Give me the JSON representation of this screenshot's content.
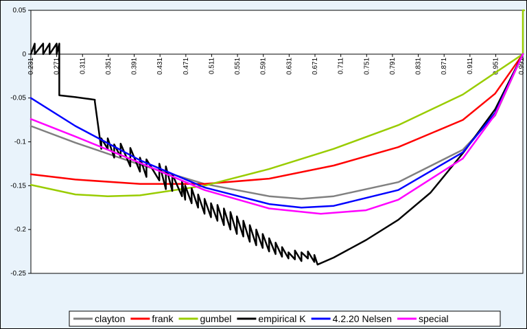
{
  "chart_data": {
    "type": "line",
    "title": "",
    "xlabel": "",
    "ylabel": "",
    "xlim": [
      0.231,
      0.993
    ],
    "ylim": [
      -0.25,
      0.05
    ],
    "y_ticks": [
      0.05,
      0,
      -0.05,
      -0.1,
      -0.15,
      -0.2,
      -0.25
    ],
    "y_tick_labels": [
      "0.05",
      "0",
      "-0.05",
      "-0.1",
      "-0.15",
      "-0.2",
      "-0.25"
    ],
    "x_tick_labels": [
      "0.231",
      "0.271",
      "0.311",
      "0.351",
      "0.391",
      "0.431",
      "0.471",
      "0.511",
      "0.551",
      "0.591",
      "0.631",
      "0.671",
      "0.711",
      "0.751",
      "0.791",
      "0.831",
      "0.871",
      "0.911",
      "0.951",
      "0.991"
    ],
    "grid": false,
    "legend_position": "bottom",
    "series": [
      {
        "name": "clayton",
        "color": "#808080",
        "x": [
          0.231,
          0.3,
          0.4,
          0.5,
          0.6,
          0.65,
          0.7,
          0.8,
          0.9,
          0.95,
          0.993
        ],
        "y": [
          -0.082,
          -0.101,
          -0.126,
          -0.148,
          -0.162,
          -0.165,
          -0.162,
          -0.146,
          -0.109,
          -0.07,
          0.0
        ]
      },
      {
        "name": "frank",
        "color": "#ff0000",
        "x": [
          0.231,
          0.3,
          0.4,
          0.5,
          0.6,
          0.7,
          0.8,
          0.9,
          0.95,
          0.993
        ],
        "y": [
          -0.137,
          -0.143,
          -0.148,
          -0.148,
          -0.142,
          -0.127,
          -0.106,
          -0.075,
          -0.045,
          0.0
        ]
      },
      {
        "name": "gumbel",
        "color": "#99cc00",
        "x": [
          0.231,
          0.3,
          0.35,
          0.4,
          0.5,
          0.6,
          0.7,
          0.8,
          0.9,
          0.993,
          0.993,
          0.995
        ],
        "y": [
          -0.149,
          -0.16,
          -0.162,
          -0.161,
          -0.15,
          -0.131,
          -0.108,
          -0.081,
          -0.046,
          0.0,
          0.05,
          0.05
        ]
      },
      {
        "name": "empirical K",
        "color": "#000000",
        "x": [
          0.231,
          0.237,
          0.237,
          0.25,
          0.25,
          0.26,
          0.26,
          0.271,
          0.271,
          0.275,
          0.275,
          0.3,
          0.33,
          0.33,
          0.34,
          0.34,
          0.35,
          0.35,
          0.36,
          0.36,
          0.37,
          0.37,
          0.385,
          0.385,
          0.4,
          0.4,
          0.41,
          0.41,
          0.43,
          0.43,
          0.44,
          0.44,
          0.45,
          0.45,
          0.465,
          0.465,
          0.47,
          0.47,
          0.48,
          0.48,
          0.49,
          0.49,
          0.5,
          0.5,
          0.51,
          0.51,
          0.52,
          0.52,
          0.53,
          0.53,
          0.54,
          0.54,
          0.55,
          0.55,
          0.56,
          0.56,
          0.57,
          0.57,
          0.58,
          0.58,
          0.59,
          0.59,
          0.6,
          0.6,
          0.61,
          0.61,
          0.62,
          0.62,
          0.63,
          0.63,
          0.64,
          0.64,
          0.65,
          0.65,
          0.66,
          0.66,
          0.67,
          0.67,
          0.675,
          0.7,
          0.75,
          0.8,
          0.85,
          0.9,
          0.95,
          0.993
        ],
        "y": [
          0.0,
          0.012,
          0.0,
          0.012,
          0.0,
          0.012,
          0.0,
          0.012,
          0.0,
          0.012,
          -0.047,
          -0.049,
          -0.052,
          -0.054,
          -0.108,
          -0.096,
          -0.108,
          -0.096,
          -0.118,
          -0.103,
          -0.117,
          -0.102,
          -0.128,
          -0.107,
          -0.134,
          -0.118,
          -0.14,
          -0.12,
          -0.144,
          -0.125,
          -0.154,
          -0.128,
          -0.156,
          -0.137,
          -0.162,
          -0.145,
          -0.166,
          -0.15,
          -0.17,
          -0.153,
          -0.175,
          -0.16,
          -0.182,
          -0.165,
          -0.186,
          -0.17,
          -0.19,
          -0.172,
          -0.195,
          -0.176,
          -0.2,
          -0.18,
          -0.205,
          -0.185,
          -0.208,
          -0.19,
          -0.214,
          -0.195,
          -0.218,
          -0.2,
          -0.221,
          -0.205,
          -0.225,
          -0.21,
          -0.228,
          -0.215,
          -0.231,
          -0.22,
          -0.233,
          -0.226,
          -0.234,
          -0.224,
          -0.236,
          -0.226,
          -0.233,
          -0.225,
          -0.237,
          -0.229,
          -0.24,
          -0.232,
          -0.212,
          -0.189,
          -0.158,
          -0.113,
          -0.063,
          0.0
        ]
      },
      {
        "name": "4.2.20 Nelsen",
        "color": "#0000ff",
        "x": [
          0.231,
          0.3,
          0.4,
          0.5,
          0.6,
          0.65,
          0.7,
          0.8,
          0.9,
          0.95,
          0.993
        ],
        "y": [
          -0.05,
          -0.082,
          -0.121,
          -0.152,
          -0.171,
          -0.175,
          -0.173,
          -0.155,
          -0.112,
          -0.067,
          0.0
        ]
      },
      {
        "name": "special",
        "color": "#ff00ff",
        "x": [
          0.231,
          0.3,
          0.4,
          0.5,
          0.6,
          0.68,
          0.75,
          0.8,
          0.9,
          0.95,
          0.993
        ],
        "y": [
          -0.074,
          -0.094,
          -0.124,
          -0.155,
          -0.176,
          -0.182,
          -0.178,
          -0.166,
          -0.119,
          -0.069,
          0.0
        ]
      }
    ]
  }
}
